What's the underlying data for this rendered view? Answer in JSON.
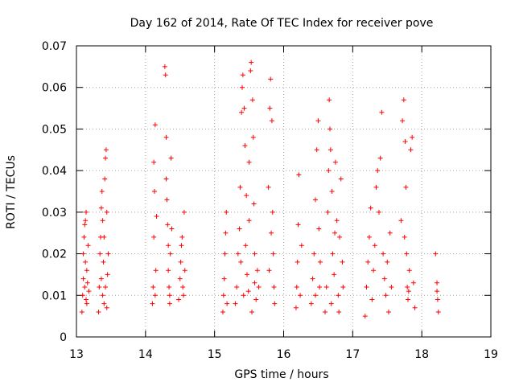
{
  "chart_data": {
    "type": "scatter",
    "title": "Day 162 of 2014, Rate Of TEC Index for receiver pove",
    "xlabel": "GPS time / hours",
    "ylabel": "ROTI / TECUs",
    "xlim": [
      13,
      19
    ],
    "ylim": [
      0,
      0.07
    ],
    "xticks": [
      13,
      14,
      15,
      16,
      17,
      18,
      19
    ],
    "yticks": [
      0,
      0.01,
      0.02,
      0.03,
      0.04,
      0.05,
      0.06,
      0.07
    ],
    "xtick_labels": [
      "13",
      "14",
      "15",
      "16",
      "17",
      "18",
      "19"
    ],
    "ytick_labels": [
      "0",
      "0.01",
      "0.02",
      "0.03",
      "0.04",
      "0.05",
      "0.06",
      "0.07"
    ],
    "grid": true,
    "marker": "+",
    "color": "#ff0000",
    "series": [
      {
        "name": "ROTI",
        "points": [
          [
            13.08,
            0.006
          ],
          [
            13.09,
            0.01
          ],
          [
            13.1,
            0.014
          ],
          [
            13.1,
            0.02
          ],
          [
            13.11,
            0.024
          ],
          [
            13.12,
            0.012
          ],
          [
            13.13,
            0.018
          ],
          [
            13.13,
            0.028
          ],
          [
            13.14,
            0.03
          ],
          [
            13.15,
            0.008
          ],
          [
            13.15,
            0.016
          ],
          [
            13.16,
            0.013
          ],
          [
            13.17,
            0.022
          ],
          [
            13.18,
            0.011
          ],
          [
            13.12,
            0.027
          ],
          [
            13.14,
            0.009
          ],
          [
            13.32,
            0.006
          ],
          [
            13.33,
            0.012
          ],
          [
            13.34,
            0.02
          ],
          [
            13.35,
            0.024
          ],
          [
            13.36,
            0.031
          ],
          [
            13.36,
            0.014
          ],
          [
            13.37,
            0.035
          ],
          [
            13.38,
            0.01
          ],
          [
            13.39,
            0.018
          ],
          [
            13.4,
            0.024
          ],
          [
            13.41,
            0.038
          ],
          [
            13.42,
            0.043
          ],
          [
            13.43,
            0.045
          ],
          [
            13.44,
            0.03
          ],
          [
            13.44,
            0.007
          ],
          [
            13.45,
            0.015
          ],
          [
            13.46,
            0.02
          ],
          [
            13.38,
            0.028
          ],
          [
            13.4,
            0.008
          ],
          [
            13.42,
            0.012
          ],
          [
            14.1,
            0.008
          ],
          [
            14.11,
            0.012
          ],
          [
            14.12,
            0.024
          ],
          [
            14.12,
            0.042
          ],
          [
            14.13,
            0.035
          ],
          [
            14.14,
            0.051
          ],
          [
            14.15,
            0.016
          ],
          [
            14.16,
            0.029
          ],
          [
            14.14,
            0.01
          ],
          [
            14.28,
            0.065
          ],
          [
            14.29,
            0.063
          ],
          [
            14.3,
            0.048
          ],
          [
            14.3,
            0.038
          ],
          [
            14.31,
            0.033
          ],
          [
            14.32,
            0.027
          ],
          [
            14.33,
            0.022
          ],
          [
            14.33,
            0.016
          ],
          [
            14.34,
            0.012
          ],
          [
            14.35,
            0.008
          ],
          [
            14.36,
            0.02
          ],
          [
            14.37,
            0.043
          ],
          [
            14.38,
            0.026
          ],
          [
            14.35,
            0.01
          ],
          [
            14.48,
            0.009
          ],
          [
            14.5,
            0.014
          ],
          [
            14.51,
            0.018
          ],
          [
            14.52,
            0.022
          ],
          [
            14.53,
            0.024
          ],
          [
            14.54,
            0.012
          ],
          [
            14.56,
            0.03
          ],
          [
            14.57,
            0.016
          ],
          [
            14.55,
            0.01
          ],
          [
            15.12,
            0.006
          ],
          [
            15.13,
            0.01
          ],
          [
            15.14,
            0.014
          ],
          [
            15.15,
            0.02
          ],
          [
            15.16,
            0.025
          ],
          [
            15.17,
            0.03
          ],
          [
            15.18,
            0.008
          ],
          [
            15.3,
            0.008
          ],
          [
            15.32,
            0.012
          ],
          [
            15.34,
            0.02
          ],
          [
            15.36,
            0.026
          ],
          [
            15.37,
            0.036
          ],
          [
            15.39,
            0.054
          ],
          [
            15.4,
            0.06
          ],
          [
            15.41,
            0.063
          ],
          [
            15.43,
            0.055
          ],
          [
            15.44,
            0.046
          ],
          [
            15.46,
            0.034
          ],
          [
            15.47,
            0.015
          ],
          [
            15.49,
            0.011
          ],
          [
            15.5,
            0.042
          ],
          [
            15.52,
            0.064
          ],
          [
            15.53,
            0.066
          ],
          [
            15.55,
            0.057
          ],
          [
            15.56,
            0.048
          ],
          [
            15.57,
            0.032
          ],
          [
            15.58,
            0.02
          ],
          [
            15.6,
            0.009
          ],
          [
            15.62,
            0.016
          ],
          [
            15.64,
            0.012
          ],
          [
            15.38,
            0.018
          ],
          [
            15.42,
            0.01
          ],
          [
            15.45,
            0.022
          ],
          [
            15.5,
            0.028
          ],
          [
            15.54,
            0.006
          ],
          [
            15.58,
            0.013
          ],
          [
            15.78,
            0.036
          ],
          [
            15.8,
            0.055
          ],
          [
            15.81,
            0.062
          ],
          [
            15.83,
            0.052
          ],
          [
            15.84,
            0.03
          ],
          [
            15.85,
            0.02
          ],
          [
            15.86,
            0.012
          ],
          [
            15.87,
            0.008
          ],
          [
            15.82,
            0.025
          ],
          [
            15.79,
            0.016
          ],
          [
            16.18,
            0.007
          ],
          [
            16.19,
            0.012
          ],
          [
            16.2,
            0.018
          ],
          [
            16.21,
            0.027
          ],
          [
            16.22,
            0.039
          ],
          [
            16.24,
            0.01
          ],
          [
            16.26,
            0.022
          ],
          [
            16.4,
            0.008
          ],
          [
            16.42,
            0.014
          ],
          [
            16.44,
            0.02
          ],
          [
            16.46,
            0.033
          ],
          [
            16.48,
            0.045
          ],
          [
            16.5,
            0.052
          ],
          [
            16.51,
            0.026
          ],
          [
            16.52,
            0.012
          ],
          [
            16.53,
            0.018
          ],
          [
            16.46,
            0.01
          ],
          [
            16.6,
            0.006
          ],
          [
            16.62,
            0.012
          ],
          [
            16.64,
            0.03
          ],
          [
            16.65,
            0.04
          ],
          [
            16.66,
            0.057
          ],
          [
            16.67,
            0.05
          ],
          [
            16.68,
            0.045
          ],
          [
            16.7,
            0.035
          ],
          [
            16.71,
            0.02
          ],
          [
            16.73,
            0.015
          ],
          [
            16.75,
            0.042
          ],
          [
            16.77,
            0.028
          ],
          [
            16.79,
            0.01
          ],
          [
            16.81,
            0.024
          ],
          [
            16.83,
            0.038
          ],
          [
            16.85,
            0.018
          ],
          [
            16.86,
            0.012
          ],
          [
            16.69,
            0.008
          ],
          [
            16.74,
            0.025
          ],
          [
            16.8,
            0.006
          ],
          [
            17.18,
            0.005
          ],
          [
            17.2,
            0.012
          ],
          [
            17.22,
            0.018
          ],
          [
            17.24,
            0.024
          ],
          [
            17.26,
            0.031
          ],
          [
            17.28,
            0.009
          ],
          [
            17.3,
            0.016
          ],
          [
            17.32,
            0.022
          ],
          [
            17.34,
            0.036
          ],
          [
            17.36,
            0.04
          ],
          [
            17.38,
            0.03
          ],
          [
            17.4,
            0.043
          ],
          [
            17.42,
            0.054
          ],
          [
            17.44,
            0.02
          ],
          [
            17.46,
            0.014
          ],
          [
            17.48,
            0.01
          ],
          [
            17.5,
            0.018
          ],
          [
            17.52,
            0.006
          ],
          [
            17.54,
            0.025
          ],
          [
            17.56,
            0.012
          ],
          [
            17.7,
            0.028
          ],
          [
            17.72,
            0.052
          ],
          [
            17.74,
            0.057
          ],
          [
            17.76,
            0.047
          ],
          [
            17.77,
            0.036
          ],
          [
            17.78,
            0.02
          ],
          [
            17.79,
            0.012
          ],
          [
            17.8,
            0.009
          ],
          [
            17.82,
            0.016
          ],
          [
            17.84,
            0.045
          ],
          [
            17.86,
            0.048
          ],
          [
            17.88,
            0.013
          ],
          [
            17.9,
            0.007
          ],
          [
            17.75,
            0.024
          ],
          [
            17.81,
            0.011
          ],
          [
            18.2,
            0.02
          ],
          [
            18.22,
            0.013
          ],
          [
            18.22,
            0.011
          ],
          [
            18.23,
            0.009
          ],
          [
            18.24,
            0.006
          ]
        ]
      }
    ]
  }
}
